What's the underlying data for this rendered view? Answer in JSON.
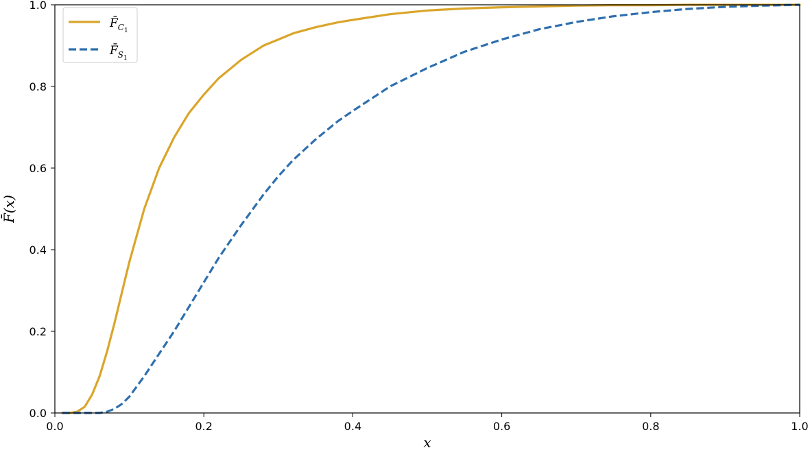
{
  "chart_data": {
    "type": "line",
    "xlabel": "x",
    "ylabel": "F̄(x)",
    "xlim": [
      0.0,
      1.0
    ],
    "ylim": [
      0.0,
      1.0
    ],
    "grid": false,
    "legend_position": "top-left",
    "x_ticks": [
      "0.0",
      "0.2",
      "0.4",
      "0.6",
      "0.8",
      "1.0"
    ],
    "y_ticks": [
      "0.0",
      "0.2",
      "0.4",
      "0.6",
      "0.8",
      "1.0"
    ],
    "x": [
      0.01,
      0.02,
      0.03,
      0.04,
      0.05,
      0.06,
      0.07,
      0.08,
      0.09,
      0.1,
      0.12,
      0.14,
      0.16,
      0.18,
      0.2,
      0.22,
      0.25,
      0.28,
      0.3,
      0.32,
      0.35,
      0.38,
      0.4,
      0.45,
      0.5,
      0.55,
      0.6,
      0.65,
      0.7,
      0.75,
      0.8,
      0.85,
      0.9,
      0.95,
      1.0
    ],
    "series": [
      {
        "name": "F̄C1",
        "label_main": "F̄",
        "label_sub": "C",
        "label_subsub": "1",
        "color": "#DAA52A",
        "dash": "solid",
        "values": [
          0.0,
          0.0,
          0.003,
          0.015,
          0.045,
          0.09,
          0.15,
          0.22,
          0.295,
          0.37,
          0.5,
          0.6,
          0.675,
          0.735,
          0.78,
          0.82,
          0.865,
          0.9,
          0.915,
          0.93,
          0.945,
          0.957,
          0.963,
          0.977,
          0.986,
          0.991,
          0.994,
          0.996,
          0.998,
          0.999,
          0.999,
          1.0,
          1.0,
          1.0,
          1.0
        ]
      },
      {
        "name": "F̄S1",
        "label_main": "F̄",
        "label_sub": "S",
        "label_subsub": "1",
        "color": "#2F6FAE",
        "dash": "dashed",
        "values": [
          0.0,
          0.0,
          0.0,
          0.0,
          0.0,
          0.0,
          0.003,
          0.01,
          0.022,
          0.04,
          0.09,
          0.145,
          0.2,
          0.26,
          0.32,
          0.38,
          0.46,
          0.535,
          0.58,
          0.62,
          0.67,
          0.715,
          0.74,
          0.8,
          0.845,
          0.885,
          0.915,
          0.94,
          0.958,
          0.972,
          0.982,
          0.99,
          0.995,
          0.998,
          1.0
        ]
      }
    ]
  }
}
